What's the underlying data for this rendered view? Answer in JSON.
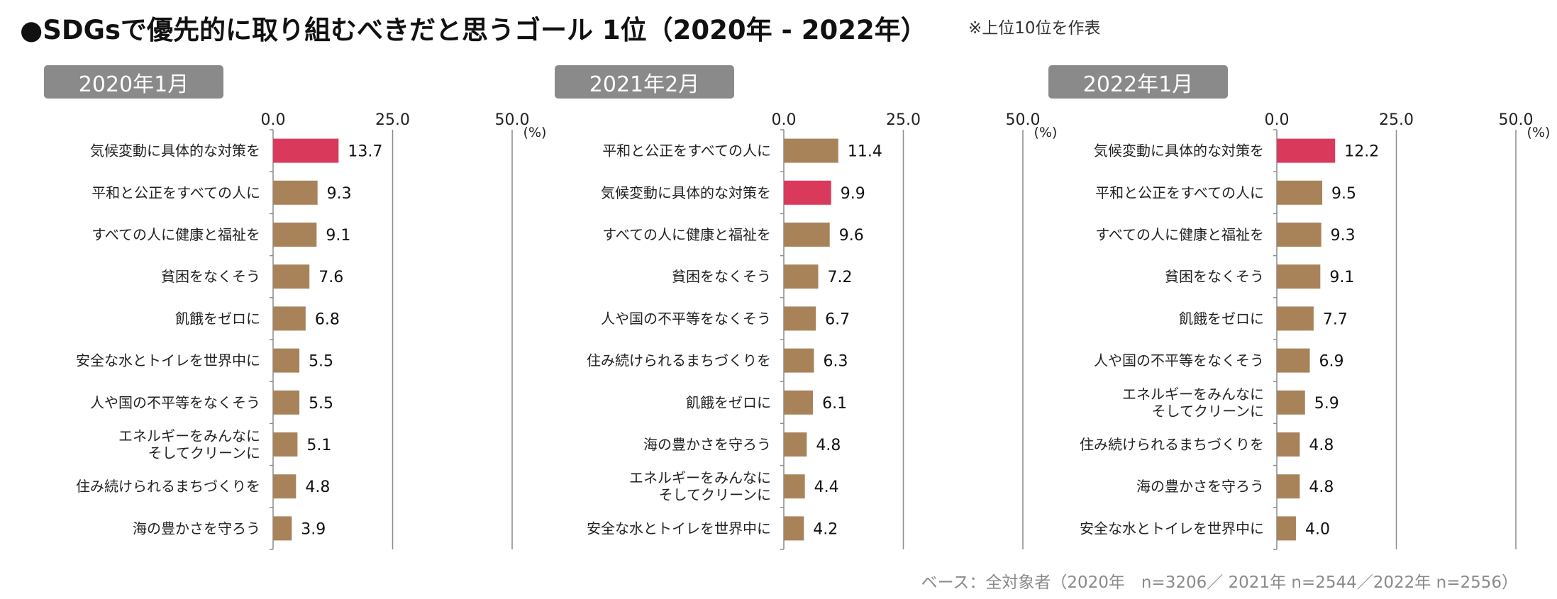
{
  "title": "●SDGsで優先的に取り組むべきだと思うゴール 1位（2020年 - 2022年）",
  "note": "※上位10位を作表",
  "base_note": "ベース：全対象者（2020年　n=3206／ 2021年 n=2544／2022年 n=2556）",
  "colors": {
    "highlight": "#d93a5c",
    "bar": "#a8835a",
    "axis": "#8c8c8c",
    "badge": "#8a8a8a"
  },
  "chart_data": [
    {
      "type": "bar",
      "orientation": "horizontal",
      "title": "2020年1月",
      "unit_label": "(%)",
      "xlim": [
        0,
        50
      ],
      "ticks": [
        "0.0",
        "25.0",
        "50.0"
      ],
      "tick_values": [
        0,
        25,
        50
      ],
      "categories": [
        "気候変動に具体的な対策を",
        "平和と公正をすべての人に",
        "すべての人に健康と福祉を",
        "貧困をなくそう",
        "飢餓をゼロに",
        "安全な水とトイレを世界中に",
        "人や国の不平等をなくそう",
        "エネルギーをみんなに\nそしてクリーンに",
        "住み続けられるまちづくりを",
        "海の豊かさを守ろう"
      ],
      "values": [
        13.7,
        9.3,
        9.1,
        7.6,
        6.8,
        5.5,
        5.5,
        5.1,
        4.8,
        3.9
      ],
      "labels": [
        "13.7",
        "9.3",
        "9.1",
        "7.6",
        "6.8",
        "5.5",
        "5.5",
        "5.1",
        "4.8",
        "3.9"
      ],
      "highlight_category": "気候変動に具体的な対策を"
    },
    {
      "type": "bar",
      "orientation": "horizontal",
      "title": "2021年2月",
      "unit_label": "(%)",
      "xlim": [
        0,
        50
      ],
      "ticks": [
        "0.0",
        "25.0",
        "50.0"
      ],
      "tick_values": [
        0,
        25,
        50
      ],
      "categories": [
        "平和と公正をすべての人に",
        "気候変動に具体的な対策を",
        "すべての人に健康と福祉を",
        "貧困をなくそう",
        "人や国の不平等をなくそう",
        "住み続けられるまちづくりを",
        "飢餓をゼロに",
        "海の豊かさを守ろう",
        "エネルギーをみんなに\nそしてクリーンに",
        "安全な水とトイレを世界中に"
      ],
      "values": [
        11.4,
        9.9,
        9.6,
        7.2,
        6.7,
        6.3,
        6.1,
        4.8,
        4.4,
        4.2
      ],
      "labels": [
        "11.4",
        "9.9",
        "9.6",
        "7.2",
        "6.7",
        "6.3",
        "6.1",
        "4.8",
        "4.4",
        "4.2"
      ],
      "highlight_category": "気候変動に具体的な対策を"
    },
    {
      "type": "bar",
      "orientation": "horizontal",
      "title": "2022年1月",
      "unit_label": "(%)",
      "xlim": [
        0,
        50
      ],
      "ticks": [
        "0.0",
        "25.0",
        "50.0"
      ],
      "tick_values": [
        0,
        25,
        50
      ],
      "categories": [
        "気候変動に具体的な対策を",
        "平和と公正をすべての人に",
        "すべての人に健康と福祉を",
        "貧困をなくそう",
        "飢餓をゼロに",
        "人や国の不平等をなくそう",
        "エネルギーをみんなに\nそしてクリーンに",
        "住み続けられるまちづくりを",
        "海の豊かさを守ろう",
        "安全な水とトイレを世界中に"
      ],
      "values": [
        12.2,
        9.5,
        9.3,
        9.1,
        7.7,
        6.9,
        5.9,
        4.8,
        4.8,
        4.0
      ],
      "labels": [
        "12.2",
        "9.5",
        "9.3",
        "9.1",
        "7.7",
        "6.9",
        "5.9",
        "4.8",
        "4.8",
        "4.0"
      ],
      "highlight_category": "気候変動に具体的な対策を"
    }
  ]
}
